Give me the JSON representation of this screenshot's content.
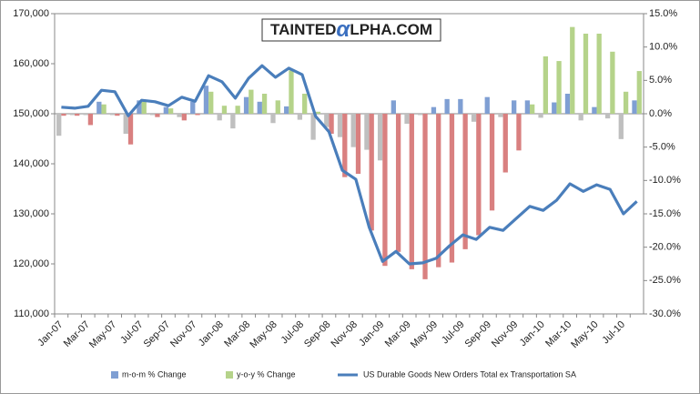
{
  "chart_data": {
    "type": "bar-line",
    "logo": [
      "TAINTED",
      "α",
      "LPHA.COM"
    ],
    "categories": [
      "Jan-07",
      null,
      "Mar-07",
      null,
      "May-07",
      null,
      "Jul-07",
      null,
      "Sep-07",
      null,
      "Nov-07",
      null,
      "Jan-08",
      null,
      "Mar-08",
      null,
      "May-08",
      null,
      "Jul-08",
      null,
      "Sep-08",
      null,
      "Nov-08",
      null,
      "Jan-09",
      null,
      "Mar-09",
      null,
      "May-09",
      null,
      "Jul-09",
      null,
      "Sep-09",
      null,
      "Nov-09",
      null,
      "Jan-10",
      null,
      "Mar-10",
      null,
      "May-10",
      null,
      "Jul-10",
      null
    ],
    "series": [
      {
        "name": "m-o-m % Change",
        "type": "bar",
        "axis": "y2",
        "color": "#7f9fd3",
        "negative_color": "#bfbfbf",
        "values": [
          -3.3,
          -0.2,
          -0.2,
          1.8,
          -0.2,
          -3.0,
          2.0,
          -0.2,
          1.0,
          -0.5,
          1.8,
          4.2,
          -1.0,
          -2.2,
          2.5,
          1.8,
          -1.4,
          1.1,
          -0.9,
          -3.9,
          -2.0,
          -3.5,
          -5.0,
          -5.4,
          -7.0,
          2.0,
          -1.5,
          -0.2,
          1.0,
          2.2,
          2.2,
          -1.2,
          2.5,
          -0.5,
          2.0,
          2.0,
          -0.6,
          1.7,
          3.0,
          -1.0,
          1.0,
          -0.7,
          -3.8,
          2.0
        ]
      },
      {
        "name": "y-o-y % Change",
        "type": "bar",
        "axis": "y2",
        "color": "#b5d38a",
        "negative_color": "#d98080",
        "values": [
          -0.3,
          -0.3,
          -1.7,
          1.4,
          -0.3,
          -4.6,
          1.8,
          -0.5,
          0.8,
          -1.0,
          -0.2,
          3.3,
          1.2,
          1.2,
          3.6,
          3.0,
          2.0,
          6.5,
          3.0,
          0.3,
          -3.0,
          -9.5,
          -9.0,
          -17.5,
          -22.8,
          -20.7,
          -23.3,
          -24.8,
          -23.0,
          -22.3,
          -20.3,
          -18.2,
          -14.5,
          -8.8,
          -5.5,
          1.4,
          8.6,
          7.9,
          13.0,
          12.0,
          12.0,
          9.3,
          3.3,
          6.4
        ]
      },
      {
        "name": "US Durable Goods New Orders Total ex Transportation SA",
        "type": "line",
        "color": "#4a7ebb",
        "values": [
          151300,
          151100,
          151500,
          154700,
          154400,
          149600,
          152700,
          152400,
          151600,
          153300,
          152500,
          157600,
          156400,
          153100,
          157100,
          159600,
          157300,
          159100,
          157800,
          149500,
          146400,
          138700,
          136900,
          127300,
          120500,
          122500,
          120000,
          120200,
          121100,
          123600,
          125800,
          124900,
          127300,
          126700,
          129100,
          131500,
          130700,
          132700,
          136000,
          134500,
          135800,
          134900,
          130000,
          132500
        ]
      }
    ],
    "ylim": [
      110000,
      170000
    ],
    "yticks": [
      {
        "value": 110000,
        "label": "110,000"
      },
      {
        "value": 120000,
        "label": "120,000"
      },
      {
        "value": 130000,
        "label": "130,000"
      },
      {
        "value": 140000,
        "label": "140,000"
      },
      {
        "value": 150000,
        "label": "150,000"
      },
      {
        "value": 160000,
        "label": "160,000"
      },
      {
        "value": 170000,
        "label": "170,000"
      }
    ],
    "y2lim": [
      -30,
      15
    ],
    "y2ticks": [
      {
        "value": -30,
        "label": "-30.0%"
      },
      {
        "value": -25,
        "label": "-25.0%"
      },
      {
        "value": -20,
        "label": "-20.0%"
      },
      {
        "value": -15,
        "label": "-15.0%"
      },
      {
        "value": -10,
        "label": "-10.0%"
      },
      {
        "value": -5,
        "label": "-5.0%"
      },
      {
        "value": 0,
        "label": "0.0%"
      },
      {
        "value": 5,
        "label": "5.0%"
      },
      {
        "value": 10,
        "label": "10.0%"
      },
      {
        "value": 15,
        "label": "15.0%"
      }
    ],
    "legend": "bottom"
  }
}
